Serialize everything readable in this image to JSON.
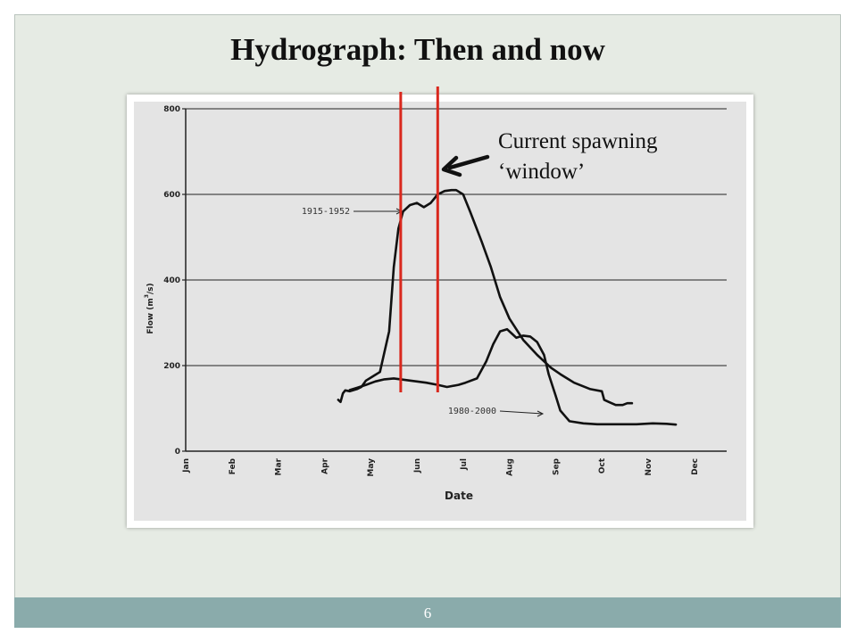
{
  "slide": {
    "title": "Hydrograph: Then and now",
    "page_number": "6",
    "annotation": {
      "line1": "Current spawning",
      "line2": "‘window’"
    }
  },
  "chart_data": {
    "type": "line",
    "title": "",
    "xlabel": "Date",
    "ylabel": "Flow (m3/s)",
    "ylabel_main": "Flow (m",
    "ylabel_sup": "3",
    "ylabel_end": "/s)",
    "x_categories": [
      "Jan",
      "Feb",
      "Mar",
      "Apr",
      "May",
      "Jun",
      "Jul",
      "Aug",
      "Sep",
      "Oct",
      "Nov",
      "Dec"
    ],
    "x_unit": "month index (0 = start of Jan)",
    "yticks": [
      "0",
      "200",
      "400",
      "600",
      "800"
    ],
    "ylim": [
      0,
      800
    ],
    "grid": "horizontal",
    "series": [
      {
        "name": "1915-1952",
        "x": [
          3.3,
          3.35,
          3.4,
          3.45,
          3.55,
          3.7,
          3.8,
          3.9,
          4.05,
          4.2,
          4.4,
          4.5,
          4.6,
          4.7,
          4.85,
          5.0,
          5.15,
          5.3,
          5.45,
          5.6,
          5.75,
          5.85,
          6.0,
          6.15,
          6.4,
          6.6,
          6.8,
          7.0,
          7.3,
          7.6,
          7.9,
          8.1,
          8.4,
          8.75,
          9.0,
          9.05,
          9.15,
          9.3,
          9.45,
          9.55,
          9.65
        ],
        "y": [
          120,
          115,
          135,
          142,
          140,
          145,
          150,
          165,
          175,
          185,
          280,
          430,
          520,
          560,
          575,
          580,
          570,
          580,
          600,
          608,
          610,
          610,
          600,
          560,
          490,
          430,
          360,
          310,
          260,
          225,
          195,
          180,
          160,
          145,
          140,
          120,
          115,
          108,
          108,
          112,
          112
        ]
      },
      {
        "name": "1980-2000",
        "x": [
          3.55,
          3.7,
          3.9,
          4.1,
          4.3,
          4.5,
          4.65,
          4.85,
          5.0,
          5.2,
          5.45,
          5.65,
          5.9,
          6.05,
          6.3,
          6.5,
          6.65,
          6.8,
          6.95,
          7.05,
          7.15,
          7.3,
          7.45,
          7.6,
          7.75,
          7.85,
          8.0,
          8.1,
          8.3,
          8.6,
          8.9,
          9.2,
          9.5,
          9.75,
          10.1,
          10.4,
          10.6
        ],
        "y": [
          143,
          148,
          155,
          163,
          168,
          170,
          168,
          165,
          163,
          160,
          155,
          150,
          155,
          160,
          170,
          210,
          250,
          280,
          285,
          275,
          265,
          270,
          268,
          255,
          225,
          180,
          130,
          95,
          70,
          65,
          63,
          63,
          63,
          63,
          65,
          64,
          62
        ]
      }
    ],
    "series_labels": [
      "1915-1952",
      "1980-2000"
    ],
    "spawning_window": {
      "start_x": 4.65,
      "end_x": 5.45
    },
    "colors": {
      "curves": "#111111",
      "window_lines": "#d9281d",
      "grid": "#222222",
      "arrow": "#111111"
    }
  }
}
